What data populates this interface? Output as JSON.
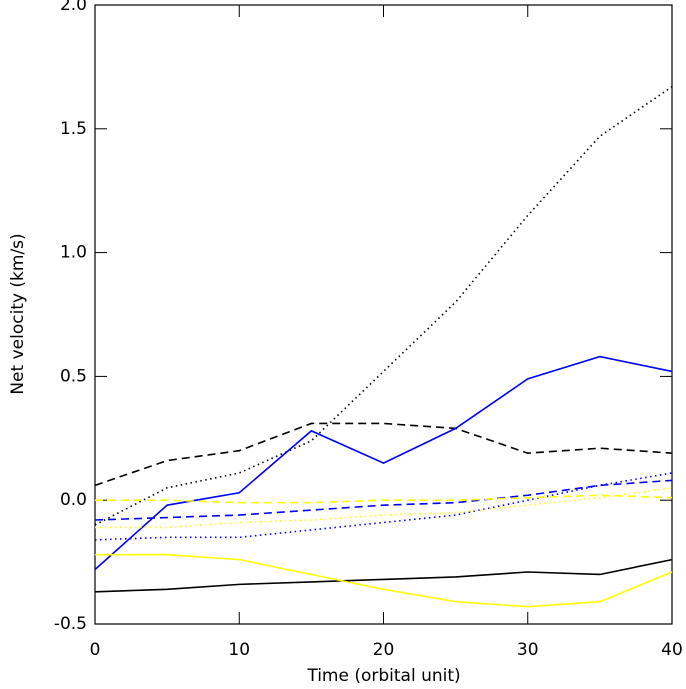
{
  "chart_data": {
    "type": "line",
    "xlabel": "Time (orbital unit)",
    "ylabel": "Net velocity (km/s)",
    "x": [
      0,
      5,
      10,
      15,
      20,
      25,
      30,
      35,
      40
    ],
    "xlim": [
      0,
      40
    ],
    "xticks": [
      0,
      10,
      20,
      30,
      40
    ],
    "ylim": [
      -0.5,
      2.0
    ],
    "yticks": [
      {
        "value": -0.5,
        "label": "-0.5"
      },
      {
        "value": 0,
        "label": "0.0"
      },
      0.5,
      {
        "value": 1,
        "label": "1.0"
      },
      1.5,
      {
        "value": 2,
        "label": "2.0"
      }
    ],
    "grid": false,
    "series": [
      {
        "color": "#000000",
        "dash": "solid",
        "values": [
          -0.37,
          -0.36,
          -0.34,
          -0.33,
          -0.32,
          -0.31,
          -0.29,
          -0.3,
          -0.24
        ]
      },
      {
        "color": "#000000",
        "dash": "dashed",
        "values": [
          0.06,
          0.16,
          0.2,
          0.31,
          0.31,
          0.29,
          0.19,
          0.21,
          0.19
        ]
      },
      {
        "color": "#000000",
        "dash": "dotted",
        "values": [
          -0.1,
          0.05,
          0.11,
          0.24,
          0.52,
          0.8,
          1.15,
          1.47,
          1.67
        ]
      },
      {
        "color": "#0000ff",
        "dash": "solid",
        "values": [
          -0.28,
          -0.02,
          0.03,
          0.28,
          0.15,
          0.29,
          0.49,
          0.58,
          0.52
        ]
      },
      {
        "color": "#0000ff",
        "dash": "dashed",
        "values": [
          -0.08,
          -0.07,
          -0.06,
          -0.04,
          -0.02,
          -0.01,
          0.02,
          0.06,
          0.08
        ]
      },
      {
        "color": "#0000ff",
        "dash": "dotted",
        "values": [
          -0.16,
          -0.15,
          -0.15,
          -0.12,
          -0.09,
          -0.06,
          0.0,
          0.06,
          0.11
        ]
      },
      {
        "color": "#ffff00",
        "dash": "solid",
        "values": [
          -0.22,
          -0.22,
          -0.24,
          -0.3,
          -0.36,
          -0.41,
          -0.43,
          -0.41,
          -0.29
        ]
      },
      {
        "color": "#ffff00",
        "dash": "dashed",
        "values": [
          0.0,
          0.0,
          -0.01,
          -0.01,
          0.0,
          0.0,
          0.01,
          0.02,
          0.01
        ]
      },
      {
        "color": "#ffff00",
        "dash": "dotted",
        "values": [
          -0.11,
          -0.11,
          -0.09,
          -0.08,
          -0.06,
          -0.05,
          -0.02,
          0.01,
          0.05
        ]
      }
    ]
  }
}
